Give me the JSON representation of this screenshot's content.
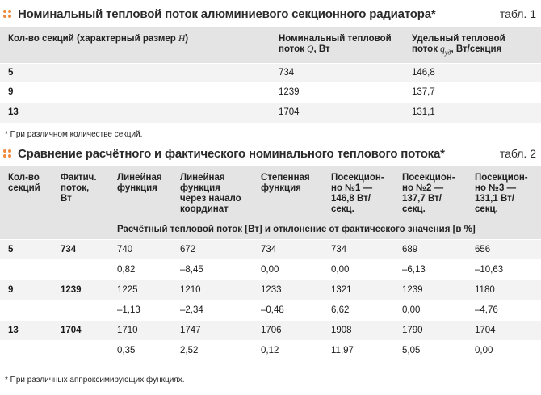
{
  "table1": {
    "title": "Номинальный тепловой поток алюминиевого секционного радиатора*",
    "tab_label": "табл. 1",
    "headers": {
      "sections": "Кол-во секций (характерный размер ",
      "sections_var": "H",
      "sections_end": ")",
      "flow_line1": "Номинальный тепловой",
      "flow_line2": "поток ",
      "flow_var": "Q",
      "flow_end": ", Вт",
      "spec_line1": "Удельный тепловой",
      "spec_line2": "поток ",
      "spec_var": "q",
      "spec_sub": "уд",
      "spec_end": ", Вт/секция"
    },
    "rows": [
      {
        "sections": "5",
        "flow": "734",
        "specific": "146,8"
      },
      {
        "sections": "9",
        "flow": "1239",
        "specific": "137,7"
      },
      {
        "sections": "13",
        "flow": "1704",
        "specific": "131,1"
      }
    ],
    "footnote": "* При различном количестве секций."
  },
  "table2": {
    "title": "Сравнение расчётного и фактического номинального теплового потока*",
    "tab_label": "табл. 2",
    "headers": {
      "sections": [
        "Кол-во",
        "секций"
      ],
      "actual": [
        "Фактич.",
        "поток,",
        "Вт"
      ],
      "linear": [
        "Линейная",
        "функция"
      ],
      "linear_origin": [
        "Линейная",
        "функция",
        "через начало",
        "координат"
      ],
      "power": [
        "Степенная",
        "функция"
      ],
      "sec1": [
        "Посекцион-",
        "но №1 —",
        "146,8 Вт/",
        "секц."
      ],
      "sec2": [
        "Посекцион-",
        "но №2 —",
        "137,7 Вт/",
        "секц."
      ],
      "sec3": [
        "Посекцион-",
        "но №3 —",
        "131,1 Вт/",
        "секц."
      ],
      "subheader": "Расчётный тепловой поток [Вт] и отклонение от фактического значения [в %]"
    },
    "groups": [
      {
        "sections": "5",
        "actual": "734",
        "values": [
          "740",
          "672",
          "734",
          "734",
          "689",
          "656"
        ],
        "deviation": [
          "0,82",
          "–8,45",
          "0,00",
          "0,00",
          "–6,13",
          "–10,63"
        ]
      },
      {
        "sections": "9",
        "actual": "1239",
        "values": [
          "1225",
          "1210",
          "1233",
          "1321",
          "1239",
          "1180"
        ],
        "deviation": [
          "–1,13",
          "–2,34",
          "–0,48",
          "6,62",
          "0,00",
          "–4,76"
        ]
      },
      {
        "sections": "13",
        "actual": "1704",
        "values": [
          "1710",
          "1747",
          "1706",
          "1908",
          "1790",
          "1704"
        ],
        "deviation": [
          "0,35",
          "2,52",
          "0,12",
          "11,97",
          "5,05",
          "0,00"
        ]
      }
    ],
    "footnote": "* При различных аппроксимирующих функциях."
  },
  "colors": {
    "accent": "#f08a3c",
    "header_bg": "#e4e4e4",
    "row_bg": "#f3f3f3"
  }
}
